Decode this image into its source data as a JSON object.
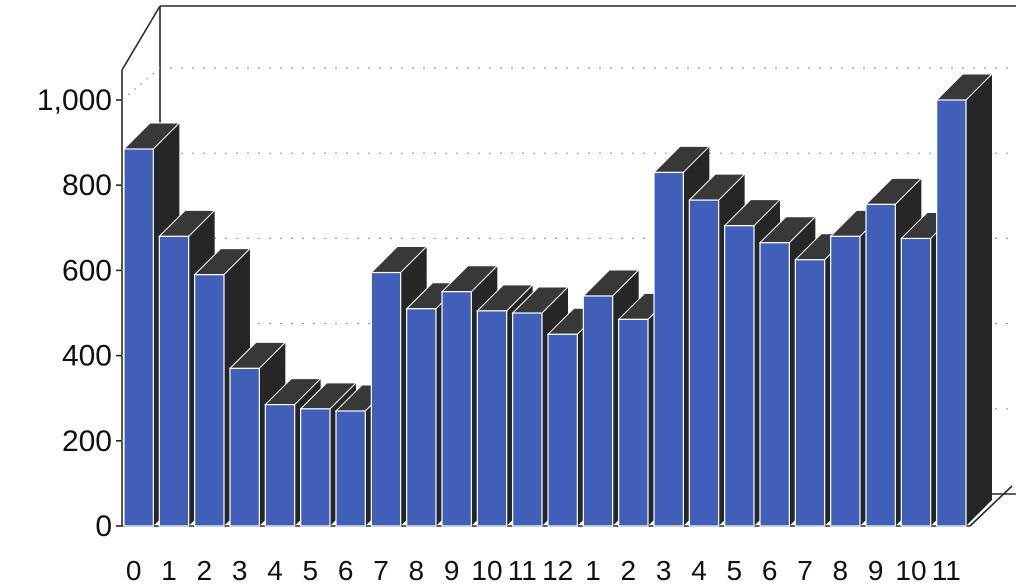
{
  "chart_data": {
    "type": "bar",
    "title": "",
    "xlabel": "",
    "ylabel": "",
    "ylim": [
      0,
      1000
    ],
    "yticks": [
      0,
      200,
      400,
      600,
      800,
      1000
    ],
    "ytick_labels": [
      "0",
      "200",
      "400",
      "600",
      "800",
      "1,000"
    ],
    "grid": true,
    "three_d": true,
    "categories": [
      "0",
      "1",
      "2",
      "3",
      "4",
      "5",
      "6",
      "7",
      "8",
      "9",
      "10",
      "11",
      "12",
      "1",
      "2",
      "3",
      "4",
      "5",
      "6",
      "7",
      "8",
      "9",
      "10",
      "11"
    ],
    "series": [
      {
        "values": [
          885,
          680,
          590,
          370,
          285,
          275,
          270,
          595,
          510,
          550,
          505,
          500,
          450,
          540,
          485,
          830,
          765,
          705,
          665,
          625,
          680,
          755,
          675,
          1000
        ]
      }
    ],
    "colors": {
      "bar_front": "#3f5fb8",
      "bar_side": "#262626",
      "bar_top": "#383838",
      "frame": "#2a2a2a",
      "grid": "#9a9a9a"
    }
  }
}
